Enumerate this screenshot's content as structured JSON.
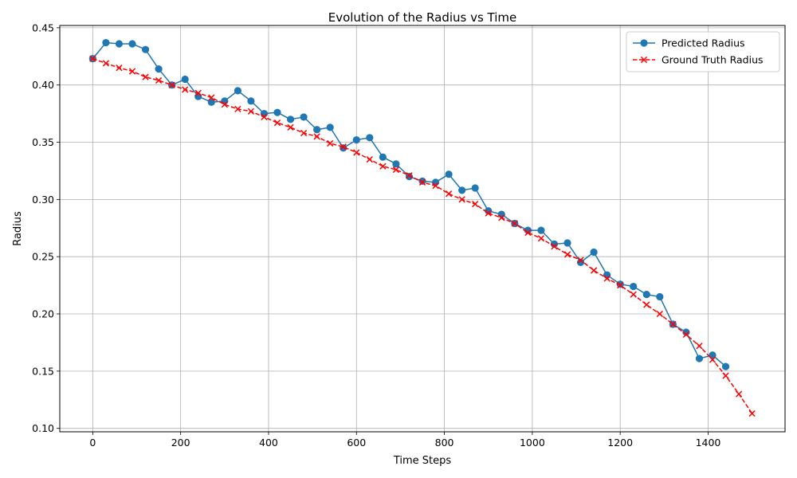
{
  "chart_data": {
    "type": "line",
    "title": "Evolution of the Radius vs Time",
    "xlabel": "Time Steps",
    "ylabel": "Radius",
    "xlim": [
      -75,
      1575
    ],
    "ylim": [
      0.097,
      0.452
    ],
    "xticks": [
      0,
      200,
      400,
      600,
      800,
      1000,
      1200,
      1400
    ],
    "yticks": [
      0.1,
      0.15,
      0.2,
      0.25,
      0.3,
      0.35,
      0.4,
      0.45
    ],
    "xtick_labels": [
      "0",
      "200",
      "400",
      "600",
      "800",
      "1000",
      "1200",
      "1400"
    ],
    "ytick_labels": [
      "0.10",
      "0.15",
      "0.20",
      "0.25",
      "0.30",
      "0.35",
      "0.40",
      "0.45"
    ],
    "grid": true,
    "legend_position": "top-right",
    "series": [
      {
        "name": "Predicted Radius",
        "color": "#1f77b4",
        "linestyle": "solid",
        "marker": "circle",
        "x": [
          0,
          30,
          60,
          90,
          120,
          150,
          180,
          210,
          240,
          270,
          300,
          330,
          360,
          390,
          420,
          450,
          480,
          510,
          540,
          570,
          600,
          630,
          660,
          690,
          720,
          750,
          780,
          810,
          840,
          870,
          900,
          930,
          960,
          990,
          1020,
          1050,
          1080,
          1110,
          1140,
          1170,
          1200,
          1230,
          1260,
          1290,
          1320,
          1350,
          1380,
          1410,
          1440
        ],
        "y": [
          0.423,
          0.437,
          0.436,
          0.436,
          0.431,
          0.414,
          0.4,
          0.405,
          0.39,
          0.385,
          0.386,
          0.395,
          0.386,
          0.375,
          0.376,
          0.37,
          0.372,
          0.361,
          0.363,
          0.345,
          0.352,
          0.354,
          0.337,
          0.331,
          0.32,
          0.316,
          0.315,
          0.322,
          0.308,
          0.31,
          0.29,
          0.287,
          0.279,
          0.273,
          0.273,
          0.261,
          0.262,
          0.245,
          0.254,
          0.234,
          0.226,
          0.224,
          0.217,
          0.215,
          0.191,
          0.184,
          0.161,
          0.164,
          0.154
        ]
      },
      {
        "name": "Ground Truth Radius",
        "color": "#ff0000",
        "linestyle": "dashed",
        "marker": "x",
        "x": [
          0,
          30,
          60,
          90,
          120,
          150,
          180,
          210,
          240,
          270,
          300,
          330,
          360,
          390,
          420,
          450,
          480,
          510,
          540,
          570,
          600,
          630,
          660,
          690,
          720,
          750,
          780,
          810,
          840,
          870,
          900,
          930,
          960,
          990,
          1020,
          1050,
          1080,
          1110,
          1140,
          1170,
          1200,
          1230,
          1260,
          1290,
          1320,
          1350,
          1380,
          1410,
          1440,
          1470,
          1500
        ],
        "y": [
          0.423,
          0.419,
          0.415,
          0.412,
          0.407,
          0.404,
          0.4,
          0.396,
          0.393,
          0.389,
          0.383,
          0.379,
          0.377,
          0.372,
          0.367,
          0.363,
          0.358,
          0.355,
          0.349,
          0.346,
          0.341,
          0.335,
          0.329,
          0.326,
          0.321,
          0.315,
          0.312,
          0.305,
          0.3,
          0.296,
          0.288,
          0.284,
          0.279,
          0.271,
          0.266,
          0.259,
          0.252,
          0.247,
          0.238,
          0.231,
          0.225,
          0.217,
          0.208,
          0.2,
          0.191,
          0.182,
          0.172,
          0.16,
          0.146,
          0.13,
          0.113
        ]
      }
    ]
  }
}
